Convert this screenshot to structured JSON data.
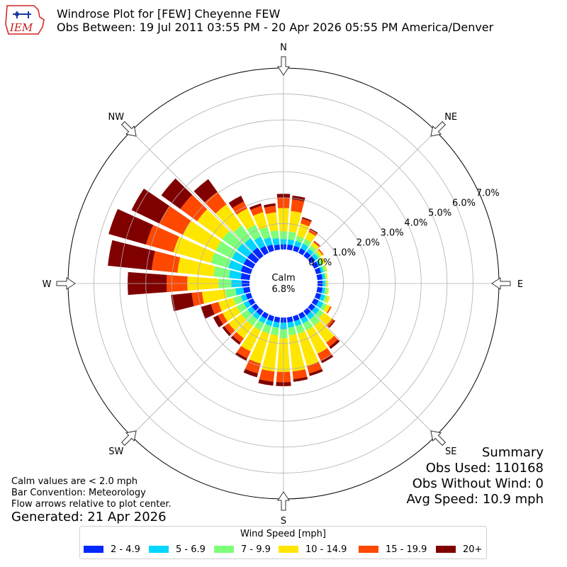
{
  "header": {
    "logo_text": "IEM",
    "title_line1": "Windrose Plot for [FEW] Cheyenne FEW",
    "title_line2": "Obs Between: 19 Jul 2011 03:55 PM - 20 Apr 2026 05:55 PM America/Denver"
  },
  "notes": {
    "calm_def": "Calm values are < 2.0 mph",
    "bar_convention": "Bar Convention: Meteorology",
    "flow_arrows": "Flow arrows relative to plot center.",
    "generated": "Generated: 21 Apr 2026"
  },
  "summary": {
    "title": "Summary",
    "obs_used": "Obs Used: 110168",
    "obs_without_wind": "Obs Without Wind: 0",
    "avg_speed": "Avg Speed: 10.9 mph"
  },
  "legend": {
    "title": "Wind Speed [mph]",
    "items": [
      {
        "label": "2 - 4.9",
        "color": "#0028ff"
      },
      {
        "label": "5 - 6.9",
        "color": "#00d5ff"
      },
      {
        "label": "7 - 9.9",
        "color": "#7dff7a"
      },
      {
        "label": "10 - 14.9",
        "color": "#ffe600"
      },
      {
        "label": "15 - 19.9",
        "color": "#ff4800"
      },
      {
        "label": "20+",
        "color": "#800000"
      }
    ]
  },
  "chart_data": {
    "type": "windrose",
    "calm_label": "Calm",
    "calm_percent": "6.8%",
    "calm_value": 6.8,
    "radial_ticks": [
      "0.0%",
      "1.0%",
      "2.0%",
      "3.0%",
      "4.0%",
      "5.0%",
      "6.0%",
      "7.0%"
    ],
    "rmax": 7.0,
    "compass_labels": [
      "N",
      "NE",
      "E",
      "SE",
      "S",
      "SW",
      "W",
      "NW"
    ],
    "speed_bins": [
      "2 - 4.9",
      "5 - 6.9",
      "7 - 9.9",
      "10 - 14.9",
      "15 - 19.9",
      "20+"
    ],
    "directions": [
      {
        "dir": 0,
        "values": [
          0.2,
          0.2,
          0.3,
          0.9,
          0.4,
          0.15
        ]
      },
      {
        "dir": 10,
        "values": [
          0.2,
          0.2,
          0.3,
          0.8,
          0.45,
          0.15
        ]
      },
      {
        "dir": 20,
        "values": [
          0.2,
          0.2,
          0.2,
          0.5,
          0.2,
          0.05
        ]
      },
      {
        "dir": 30,
        "values": [
          0.2,
          0.2,
          0.2,
          0.3,
          0.1,
          0.05
        ]
      },
      {
        "dir": 40,
        "values": [
          0.2,
          0.15,
          0.15,
          0.15,
          0.05,
          0.02
        ]
      },
      {
        "dir": 50,
        "values": [
          0.2,
          0.15,
          0.1,
          0.1,
          0.05,
          0.0
        ]
      },
      {
        "dir": 60,
        "values": [
          0.2,
          0.1,
          0.1,
          0.1,
          0.0,
          0.0
        ]
      },
      {
        "dir": 70,
        "values": [
          0.2,
          0.1,
          0.1,
          0.05,
          0.0,
          0.0
        ]
      },
      {
        "dir": 80,
        "values": [
          0.2,
          0.1,
          0.05,
          0.05,
          0.0,
          0.0
        ]
      },
      {
        "dir": 90,
        "values": [
          0.2,
          0.1,
          0.05,
          0.05,
          0.0,
          0.0
        ]
      },
      {
        "dir": 100,
        "values": [
          0.2,
          0.1,
          0.1,
          0.05,
          0.0,
          0.0
        ]
      },
      {
        "dir": 110,
        "values": [
          0.2,
          0.15,
          0.1,
          0.1,
          0.0,
          0.0
        ]
      },
      {
        "dir": 120,
        "values": [
          0.2,
          0.2,
          0.15,
          0.15,
          0.05,
          0.0
        ]
      },
      {
        "dir": 130,
        "values": [
          0.2,
          0.2,
          0.2,
          0.4,
          0.1,
          0.05
        ]
      },
      {
        "dir": 140,
        "values": [
          0.2,
          0.2,
          0.3,
          0.8,
          0.2,
          0.1
        ]
      },
      {
        "dir": 150,
        "values": [
          0.2,
          0.2,
          0.3,
          1.0,
          0.3,
          0.1
        ]
      },
      {
        "dir": 160,
        "values": [
          0.2,
          0.2,
          0.3,
          1.3,
          0.3,
          0.1
        ]
      },
      {
        "dir": 170,
        "values": [
          0.2,
          0.2,
          0.3,
          1.4,
          0.3,
          0.1
        ]
      },
      {
        "dir": 180,
        "values": [
          0.2,
          0.25,
          0.35,
          1.3,
          0.4,
          0.15
        ]
      },
      {
        "dir": 190,
        "values": [
          0.2,
          0.2,
          0.3,
          1.4,
          0.4,
          0.15
        ]
      },
      {
        "dir": 200,
        "values": [
          0.2,
          0.2,
          0.3,
          1.2,
          0.4,
          0.15
        ]
      },
      {
        "dir": 210,
        "values": [
          0.2,
          0.2,
          0.3,
          0.9,
          0.3,
          0.1
        ]
      },
      {
        "dir": 220,
        "values": [
          0.2,
          0.2,
          0.3,
          0.6,
          0.2,
          0.1
        ]
      },
      {
        "dir": 230,
        "values": [
          0.2,
          0.2,
          0.3,
          0.6,
          0.2,
          0.1
        ]
      },
      {
        "dir": 240,
        "values": [
          0.2,
          0.2,
          0.3,
          0.6,
          0.2,
          0.2
        ]
      },
      {
        "dir": 250,
        "values": [
          0.2,
          0.2,
          0.3,
          0.6,
          0.3,
          0.4
        ]
      },
      {
        "dir": 260,
        "values": [
          0.25,
          0.3,
          0.4,
          0.9,
          0.4,
          0.8
        ]
      },
      {
        "dir": 270,
        "values": [
          0.3,
          0.4,
          0.5,
          1.2,
          0.8,
          1.5
        ]
      },
      {
        "dir": 280,
        "values": [
          0.35,
          0.45,
          0.6,
          1.4,
          1.0,
          1.7
        ]
      },
      {
        "dir": 290,
        "values": [
          0.4,
          0.5,
          0.7,
          1.5,
          1.1,
          1.5
        ]
      },
      {
        "dir": 300,
        "values": [
          0.4,
          0.5,
          0.7,
          1.4,
          1.0,
          1.2
        ]
      },
      {
        "dir": 310,
        "values": [
          0.4,
          0.5,
          0.7,
          1.2,
          0.8,
          0.9
        ]
      },
      {
        "dir": 320,
        "values": [
          0.4,
          0.45,
          0.6,
          1.0,
          0.6,
          0.6
        ]
      },
      {
        "dir": 330,
        "values": [
          0.3,
          0.4,
          0.5,
          0.7,
          0.3,
          0.25
        ]
      },
      {
        "dir": 340,
        "values": [
          0.25,
          0.3,
          0.4,
          0.6,
          0.25,
          0.1
        ]
      },
      {
        "dir": 350,
        "values": [
          0.2,
          0.25,
          0.3,
          0.7,
          0.25,
          0.1
        ]
      }
    ]
  }
}
